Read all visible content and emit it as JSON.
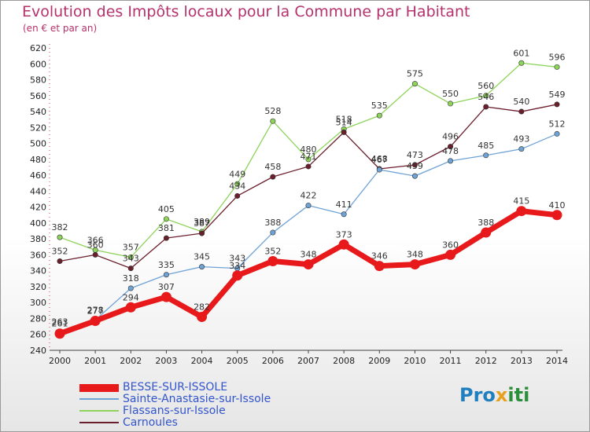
{
  "header": {
    "title": "Evolution des Impôts locaux pour la Commune par Habitant",
    "subtitle": "(en € et par an)"
  },
  "chart_data": {
    "type": "line",
    "title": "Evolution des Impôts locaux pour la Commune par Habitant",
    "subtitle": "(en € et par an)",
    "x": [
      2000,
      2001,
      2002,
      2003,
      2004,
      2005,
      2006,
      2007,
      2008,
      2009,
      2010,
      2011,
      2012,
      2013,
      2014
    ],
    "ylim": [
      240,
      620
    ],
    "yticks": [
      240,
      260,
      280,
      300,
      320,
      340,
      360,
      380,
      400,
      420,
      440,
      460,
      480,
      500,
      520,
      540,
      560,
      580,
      600,
      620
    ],
    "grid": false,
    "legend_position": "bottom-left",
    "series": [
      {
        "name": "Flassans-sur-Issole",
        "color": "#8ed45a",
        "values": [
          382,
          366,
          357,
          405,
          389,
          449,
          528,
          480,
          518,
          535,
          575,
          550,
          560,
          601,
          596
        ]
      },
      {
        "name": "Carnoules",
        "color": "#6b1f2c",
        "values": [
          352,
          360,
          343,
          381,
          387,
          434,
          458,
          471,
          514,
          468,
          473,
          496,
          546,
          540,
          549
        ]
      },
      {
        "name": "Sainte-Anastasie-sur-Issole",
        "color": "#6fa3d6",
        "values": [
          263,
          278,
          318,
          335,
          345,
          343,
          388,
          422,
          411,
          467,
          459,
          478,
          485,
          493,
          512
        ]
      },
      {
        "name": "BESSE-SUR-ISSOLE",
        "color": "#e8191b",
        "values": [
          261,
          277,
          294,
          307,
          282,
          334,
          352,
          348,
          373,
          346,
          348,
          360,
          388,
          415,
          410
        ]
      }
    ]
  },
  "legend": {
    "items": [
      {
        "label": "BESSE-SUR-ISSOLE",
        "color": "#e8191b",
        "text_color": "#3355cc"
      },
      {
        "label": "Sainte-Anastasie-sur-Issole",
        "color": "#6fa3d6",
        "text_color": "#3355cc"
      },
      {
        "label": "Flassans-sur-Issole",
        "color": "#8ed45a",
        "text_color": "#3355cc"
      },
      {
        "label": "Carnoules",
        "color": "#6b1f2c",
        "text_color": "#3355cc"
      }
    ]
  },
  "logo": {
    "text_a": "Pro",
    "text_b": "x",
    "text_c": "iti"
  }
}
